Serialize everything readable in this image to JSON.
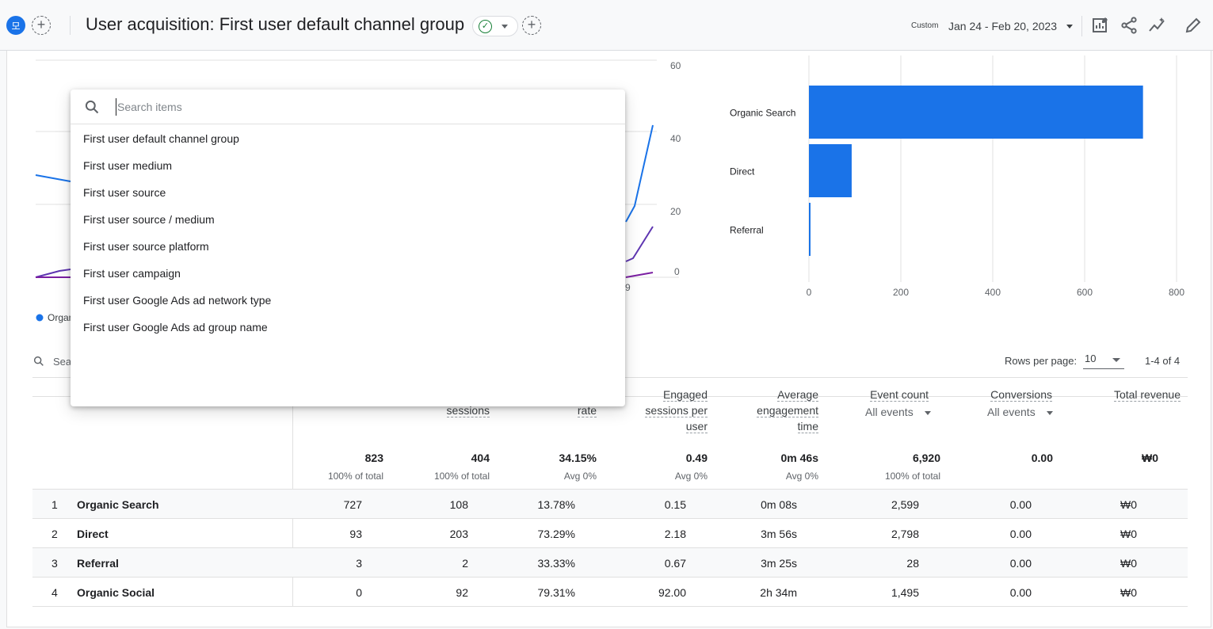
{
  "header": {
    "avatar_letter": "모",
    "title": "User acquisition: First user default channel group",
    "date_label": "Custom",
    "date_range": "Jan 24 - Feb 20, 2023",
    "icons": [
      "customize-report-icon",
      "share-icon",
      "insights-icon",
      "edit-icon"
    ]
  },
  "line_chart": {
    "y_ticks": [
      "60",
      "40",
      "20",
      "0"
    ],
    "x_tick_partial": "9",
    "legend_partial": "Organ"
  },
  "chart_data": [
    {
      "type": "line",
      "y_ticks": [
        "60",
        "40",
        "20",
        "0"
      ],
      "ylim": [
        0,
        60
      ],
      "series": [
        {
          "color": "#1a73e8",
          "values_visible_right": [
            20,
            42
          ]
        },
        {
          "color": "#5e35b1",
          "values_visible_right": [
            5,
            15
          ]
        },
        {
          "color": "#7b1fa2",
          "values_visible_right": [
            0,
            1
          ]
        }
      ]
    },
    {
      "type": "bar",
      "orientation": "horizontal",
      "categories": [
        "Organic Search",
        "Direct",
        "Referral"
      ],
      "values": [
        727,
        93,
        3
      ],
      "x_ticks": [
        "0",
        "200",
        "400",
        "600",
        "800"
      ],
      "xlim": [
        0,
        800
      ],
      "color": "#1a73e8"
    }
  ],
  "table": {
    "search_placeholder": "Sear",
    "rows_per_page_label": "Rows per page:",
    "rows_per_page_value": "10",
    "pager": "1-4 of 4",
    "headers": {
      "sessions": "sessions",
      "rate": "rate",
      "engaged_sessions_per_user": [
        "Engaged",
        "sessions per",
        "user"
      ],
      "avg_engagement_time": [
        "Average",
        "engagement",
        "time"
      ],
      "event_count": "Event count",
      "event_count_sub": "All events",
      "conversions": "Conversions",
      "conversions_sub": "All events",
      "total_revenue": "Total revenue"
    },
    "totals": {
      "users": "823",
      "users_sub": "100% of total",
      "sessions": "404",
      "sessions_sub": "100% of total",
      "rate": "34.15%",
      "rate_sub": "Avg 0%",
      "esp": "0.49",
      "esp_sub": "Avg 0%",
      "aet": "0m 46s",
      "aet_sub": "Avg 0%",
      "events": "6,920",
      "events_sub": "100% of total",
      "conversions": "0.00",
      "revenue": "₩0"
    },
    "rows": [
      {
        "idx": "1",
        "name": "Organic Search",
        "users": "727",
        "sessions": "108",
        "rate": "13.78%",
        "esp": "0.15",
        "aet": "0m 08s",
        "events": "2,599",
        "conv": "0.00",
        "rev": "₩0"
      },
      {
        "idx": "2",
        "name": "Direct",
        "users": "93",
        "sessions": "203",
        "rate": "73.29%",
        "esp": "2.18",
        "aet": "3m 56s",
        "events": "2,798",
        "conv": "0.00",
        "rev": "₩0"
      },
      {
        "idx": "3",
        "name": "Referral",
        "users": "3",
        "sessions": "2",
        "rate": "33.33%",
        "esp": "0.67",
        "aet": "3m 25s",
        "events": "28",
        "conv": "0.00",
        "rev": "₩0"
      },
      {
        "idx": "4",
        "name": "Organic Social",
        "users": "0",
        "sessions": "92",
        "rate": "79.31%",
        "esp": "92.00",
        "aet": "2h 34m",
        "events": "1,495",
        "conv": "0.00",
        "rev": "₩0"
      }
    ]
  },
  "dropdown": {
    "search_placeholder": "Search items",
    "items": [
      "First user default channel group",
      "First user medium",
      "First user source",
      "First user source / medium",
      "First user source platform",
      "First user campaign",
      "First user Google Ads ad network type",
      "First user Google Ads ad group name"
    ]
  },
  "colors": {
    "accent": "#1a73e8",
    "success": "#188038",
    "series_purple": "#5e35b1"
  }
}
